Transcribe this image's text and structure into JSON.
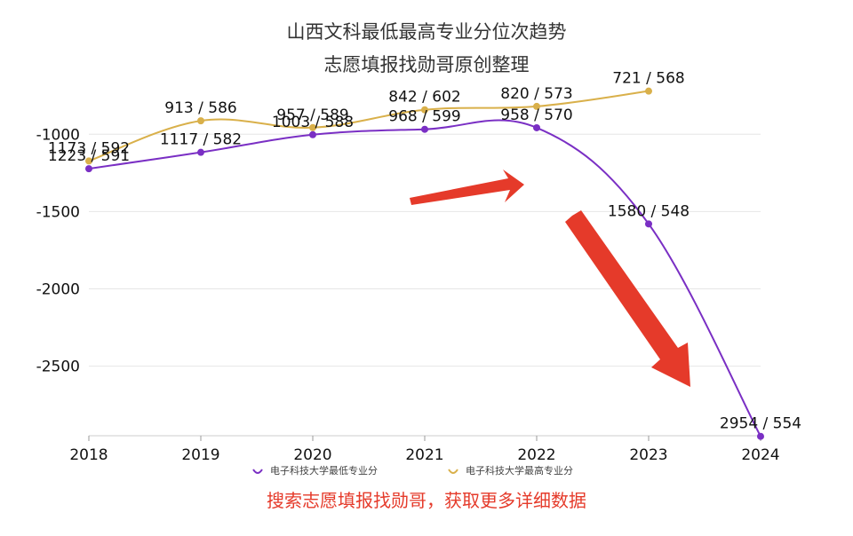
{
  "chart_data": {
    "type": "line",
    "title": "山西文科最低最高专业分位次趋势",
    "subtitle": "志愿填报找勋哥原创整理",
    "x": [
      "2018",
      "2019",
      "2020",
      "2021",
      "2022",
      "2023",
      "2024"
    ],
    "ylim": [
      -2950,
      -700
    ],
    "yticks": [
      -1000,
      -1500,
      -2000,
      -2500
    ],
    "grid": true,
    "legend_position": "bottom",
    "series": [
      {
        "name": "电子科技大学最低专业分",
        "color": "#7a2fc4",
        "values": [
          -1223,
          -1117,
          -1003,
          -968,
          -958,
          -1580,
          -2954
        ],
        "labels": [
          "1223 / 591",
          "1117 / 582",
          "1003 / 588",
          "968 / 599",
          "958 / 570",
          "1580 / 548",
          "2954 / 554"
        ]
      },
      {
        "name": "电子科技大学最高专业分",
        "color": "#d9b04a",
        "values": [
          -1173,
          -913,
          -957,
          -842,
          -820,
          -721,
          null
        ],
        "labels": [
          "1173 / 592",
          "913 / 586",
          "957 / 589",
          "842 / 602",
          "820 / 573",
          "721 / 568",
          null
        ]
      }
    ],
    "annotation_color": "#e53a2a"
  },
  "footer_text": "搜索志愿填报找勋哥，获取更多详细数据"
}
